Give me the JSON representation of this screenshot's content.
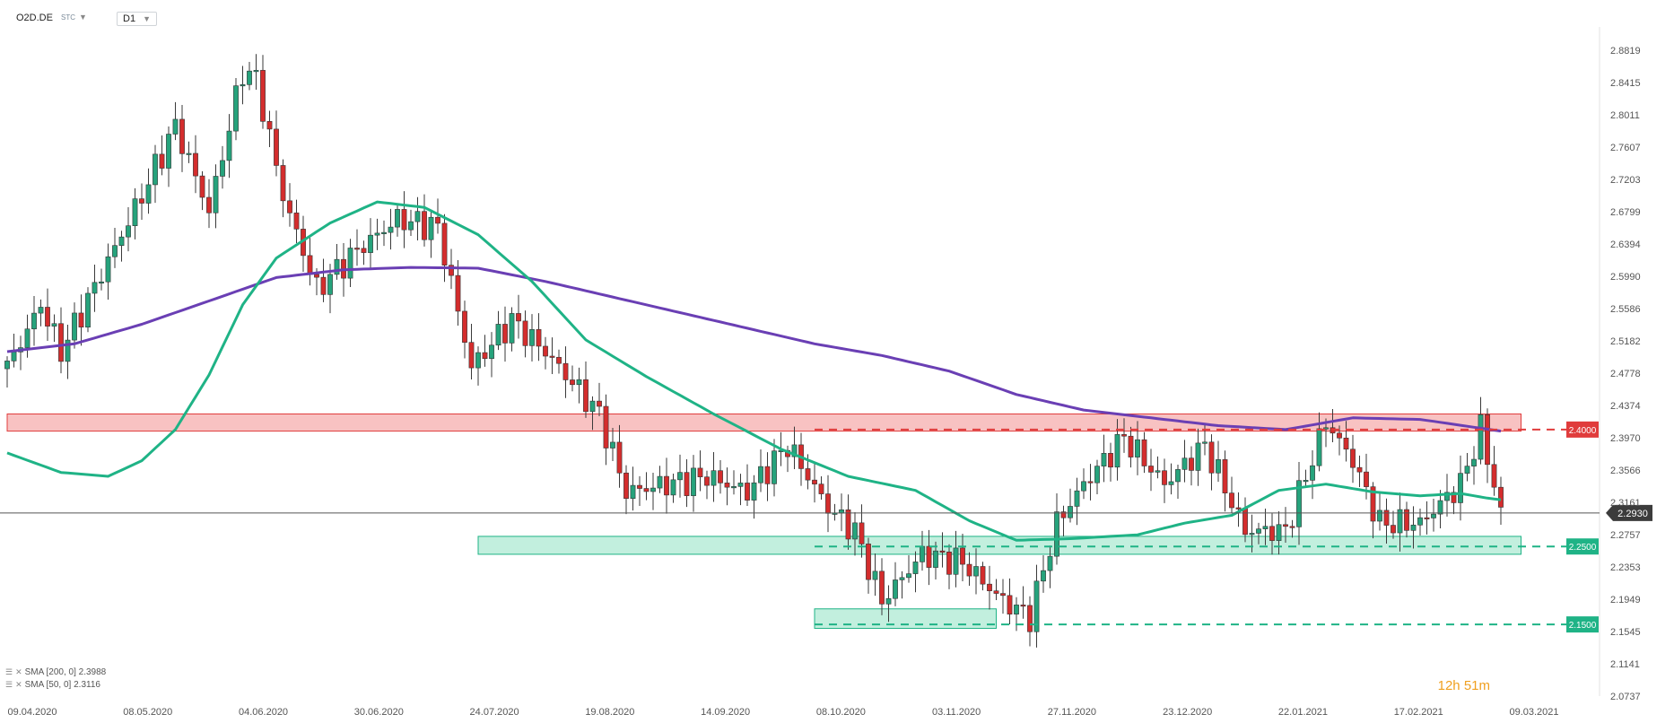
{
  "header": {
    "symbol": "O2D.DE",
    "source": "STC",
    "timeframe": "D1"
  },
  "legend": [
    {
      "label": "SMA [200, 0] 2.3988"
    },
    {
      "label": "SMA [50, 0] 2.3116"
    }
  ],
  "timer": "12h 51m",
  "colors": {
    "up": "#26a37c",
    "down": "#d42d2d",
    "sma200": "#6a3fb4",
    "sma50": "#1fb386",
    "resistance": "#e03c3c",
    "support": "#1fb386",
    "price_line": "#555555"
  },
  "chart_data": {
    "type": "candlestick",
    "y_ticks": [
      "2.8819",
      "2.8415",
      "2.8011",
      "2.7607",
      "2.7203",
      "2.6799",
      "2.6394",
      "2.5990",
      "2.5586",
      "2.5182",
      "2.4778",
      "2.4374",
      "2.3970",
      "2.3566",
      "2.3161",
      "2.2757",
      "2.2353",
      "2.1949",
      "2.1545",
      "2.1141",
      "2.0737"
    ],
    "x_ticks": [
      "09.04.2020",
      "08.05.2020",
      "04.06.2020",
      "30.06.2020",
      "24.07.2020",
      "19.08.2020",
      "14.09.2020",
      "08.10.2020",
      "03.11.2020",
      "27.11.2020",
      "23.12.2020",
      "22.01.2021",
      "17.02.2021",
      "09.03.2021"
    ],
    "ylim": [
      2.065,
      2.905
    ],
    "levels": [
      {
        "label": "2.4000",
        "value": 2.4,
        "type": "resistance"
      },
      {
        "label": "2.2500",
        "value": 2.25,
        "type": "support"
      },
      {
        "label": "2.1500",
        "value": 2.15,
        "type": "support"
      }
    ],
    "zones": [
      {
        "type": "resistance",
        "from_index": 0,
        "to_index": 225,
        "y_low": 2.398,
        "y_high": 2.42
      },
      {
        "type": "support",
        "from_index": 70,
        "to_index": 225,
        "y_low": 2.24,
        "y_high": 2.263
      },
      {
        "type": "support",
        "from_index": 120,
        "to_index": 147,
        "y_low": 2.145,
        "y_high": 2.17
      }
    ],
    "current_price": {
      "label": "2.2930",
      "value": 2.293
    },
    "series": [
      {
        "name": "SMA [200, 0]",
        "anchors": [
          [
            0,
            2.5
          ],
          [
            10,
            2.51
          ],
          [
            20,
            2.535
          ],
          [
            30,
            2.565
          ],
          [
            40,
            2.595
          ],
          [
            50,
            2.605
          ],
          [
            60,
            2.608
          ],
          [
            70,
            2.607
          ],
          [
            80,
            2.59
          ],
          [
            90,
            2.57
          ],
          [
            100,
            2.55
          ],
          [
            110,
            2.53
          ],
          [
            120,
            2.51
          ],
          [
            130,
            2.495
          ],
          [
            140,
            2.475
          ],
          [
            150,
            2.445
          ],
          [
            160,
            2.425
          ],
          [
            170,
            2.415
          ],
          [
            180,
            2.405
          ],
          [
            190,
            2.4
          ],
          [
            200,
            2.415
          ],
          [
            210,
            2.413
          ],
          [
            218,
            2.403
          ],
          [
            222,
            2.398
          ]
        ]
      },
      {
        "name": "SMA [50, 0]",
        "anchors": [
          [
            0,
            2.37
          ],
          [
            8,
            2.345
          ],
          [
            15,
            2.34
          ],
          [
            20,
            2.36
          ],
          [
            25,
            2.4
          ],
          [
            30,
            2.47
          ],
          [
            35,
            2.56
          ],
          [
            40,
            2.62
          ],
          [
            48,
            2.665
          ],
          [
            55,
            2.692
          ],
          [
            62,
            2.685
          ],
          [
            70,
            2.65
          ],
          [
            78,
            2.59
          ],
          [
            86,
            2.515
          ],
          [
            95,
            2.468
          ],
          [
            105,
            2.42
          ],
          [
            115,
            2.375
          ],
          [
            125,
            2.34
          ],
          [
            135,
            2.322
          ],
          [
            143,
            2.283
          ],
          [
            150,
            2.258
          ],
          [
            158,
            2.26
          ],
          [
            168,
            2.265
          ],
          [
            175,
            2.28
          ],
          [
            182,
            2.29
          ],
          [
            189,
            2.322
          ],
          [
            196,
            2.33
          ],
          [
            203,
            2.32
          ],
          [
            210,
            2.315
          ],
          [
            216,
            2.318
          ],
          [
            220,
            2.312
          ],
          [
            222,
            2.31
          ]
        ]
      }
    ]
  }
}
